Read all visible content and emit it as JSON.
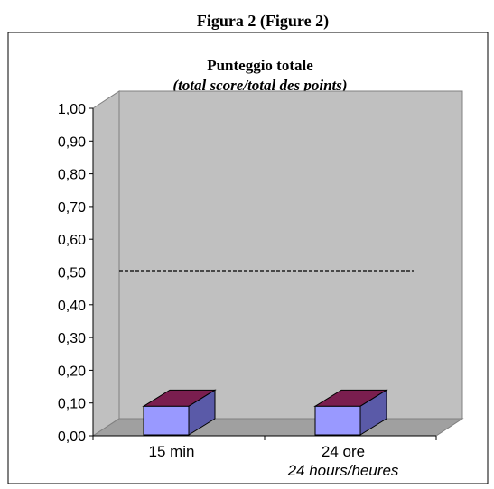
{
  "figure_label": "Figura 2 (Figure 2)",
  "colors": {
    "wall": "#c0c0c0",
    "floor": "#a0a0a0",
    "bar_front": "#9999ff",
    "bar_side": "#5a5aa8",
    "bar_top": "#7a1e4f",
    "reference_line": "#000000"
  },
  "chart_data": {
    "type": "bar",
    "style": "3d-column",
    "title": "Punteggio totale",
    "subtitle": "(total score/total des points)",
    "categories": [
      {
        "line1": "15 min",
        "line2": ""
      },
      {
        "line1": "24 ore",
        "line2": "24 hours/heures"
      }
    ],
    "values": [
      0.09,
      0.09
    ],
    "ylim": [
      0,
      1
    ],
    "y_ticks": [
      "0,00",
      "0,10",
      "0,20",
      "0,30",
      "0,40",
      "0,50",
      "0,60",
      "0,70",
      "0,80",
      "0,90",
      "1,00"
    ],
    "reference_line": {
      "value": 0.5,
      "style": "dashed"
    },
    "grid": false,
    "legend": "none"
  }
}
